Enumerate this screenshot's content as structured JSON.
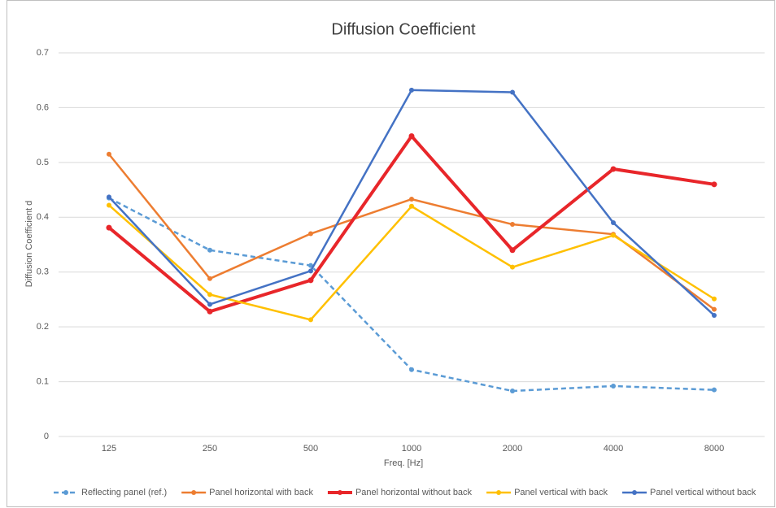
{
  "chart_data": {
    "type": "line",
    "title": "Diffusion Coefficient",
    "x_label": "Freq. [Hz]",
    "y_label": "Diffusion Coefficient  d",
    "categories": [
      "125",
      "250",
      "500",
      "1000",
      "2000",
      "4000",
      "8000"
    ],
    "ylim": [
      0,
      0.7
    ],
    "yticks": [
      0,
      0.1,
      0.2,
      0.3,
      0.4,
      0.5,
      0.6,
      0.7
    ],
    "grid": true,
    "legend": "bottom",
    "series": [
      {
        "name": "Reflecting panel (ref.)",
        "color": "#5b9bd5",
        "dashed": true,
        "values": [
          0.435,
          0.34,
          0.312,
          0.122,
          0.083,
          0.092,
          0.085
        ]
      },
      {
        "name": "Panel horizontal with back",
        "color": "#ed7d31",
        "values": [
          0.515,
          0.288,
          0.37,
          0.433,
          0.387,
          0.369,
          0.232
        ]
      },
      {
        "name": "Panel horizontal without back",
        "color": "#e8262a",
        "bold": true,
        "values": [
          0.381,
          0.228,
          0.285,
          0.548,
          0.34,
          0.488,
          0.46
        ]
      },
      {
        "name": "Panel vertical with back",
        "color": "#ffc000",
        "values": [
          0.422,
          0.259,
          0.213,
          0.42,
          0.309,
          0.367,
          0.251
        ]
      },
      {
        "name": "Panel vertical without back",
        "color": "#4472c4",
        "values": [
          0.437,
          0.241,
          0.302,
          0.632,
          0.628,
          0.39,
          0.221
        ]
      }
    ]
  }
}
